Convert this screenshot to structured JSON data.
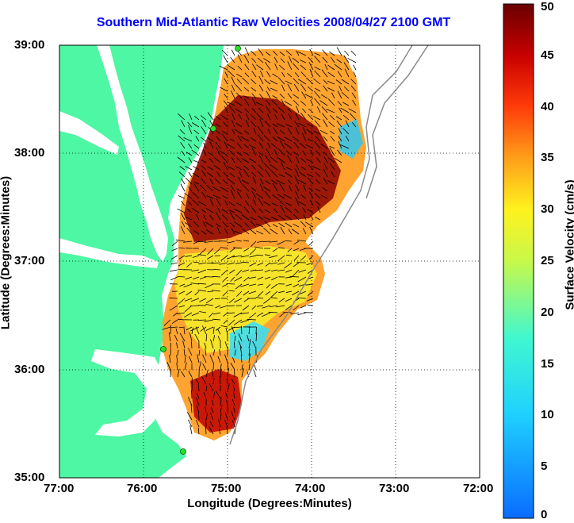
{
  "title": "Southern Mid-Atlantic Raw Velocities 2008/04/27 2100 GMT",
  "xlabel": "Longitude (Degrees:Minutes)",
  "ylabel": "Latitude (Degrees:Minutes)",
  "colorbar": {
    "label": "Surface Velocity (cm/s)",
    "ticks": [
      "0",
      "5",
      "10",
      "15",
      "20",
      "25",
      "30",
      "35",
      "40",
      "45",
      "50"
    ],
    "range": [
      0,
      50
    ],
    "colormap": "jet"
  },
  "map": {
    "lon_ticks": [
      "77:00",
      "76:00",
      "75:00",
      "74:00",
      "73:00",
      "72:00"
    ],
    "lat_ticks": [
      "39:00",
      "38:00",
      "37:00",
      "36:00",
      "35:00"
    ],
    "lon_range": [
      -77,
      -72
    ],
    "lat_range": [
      35,
      39
    ],
    "grid": true,
    "land_color": "#4df7a4",
    "stations": 4
  }
}
